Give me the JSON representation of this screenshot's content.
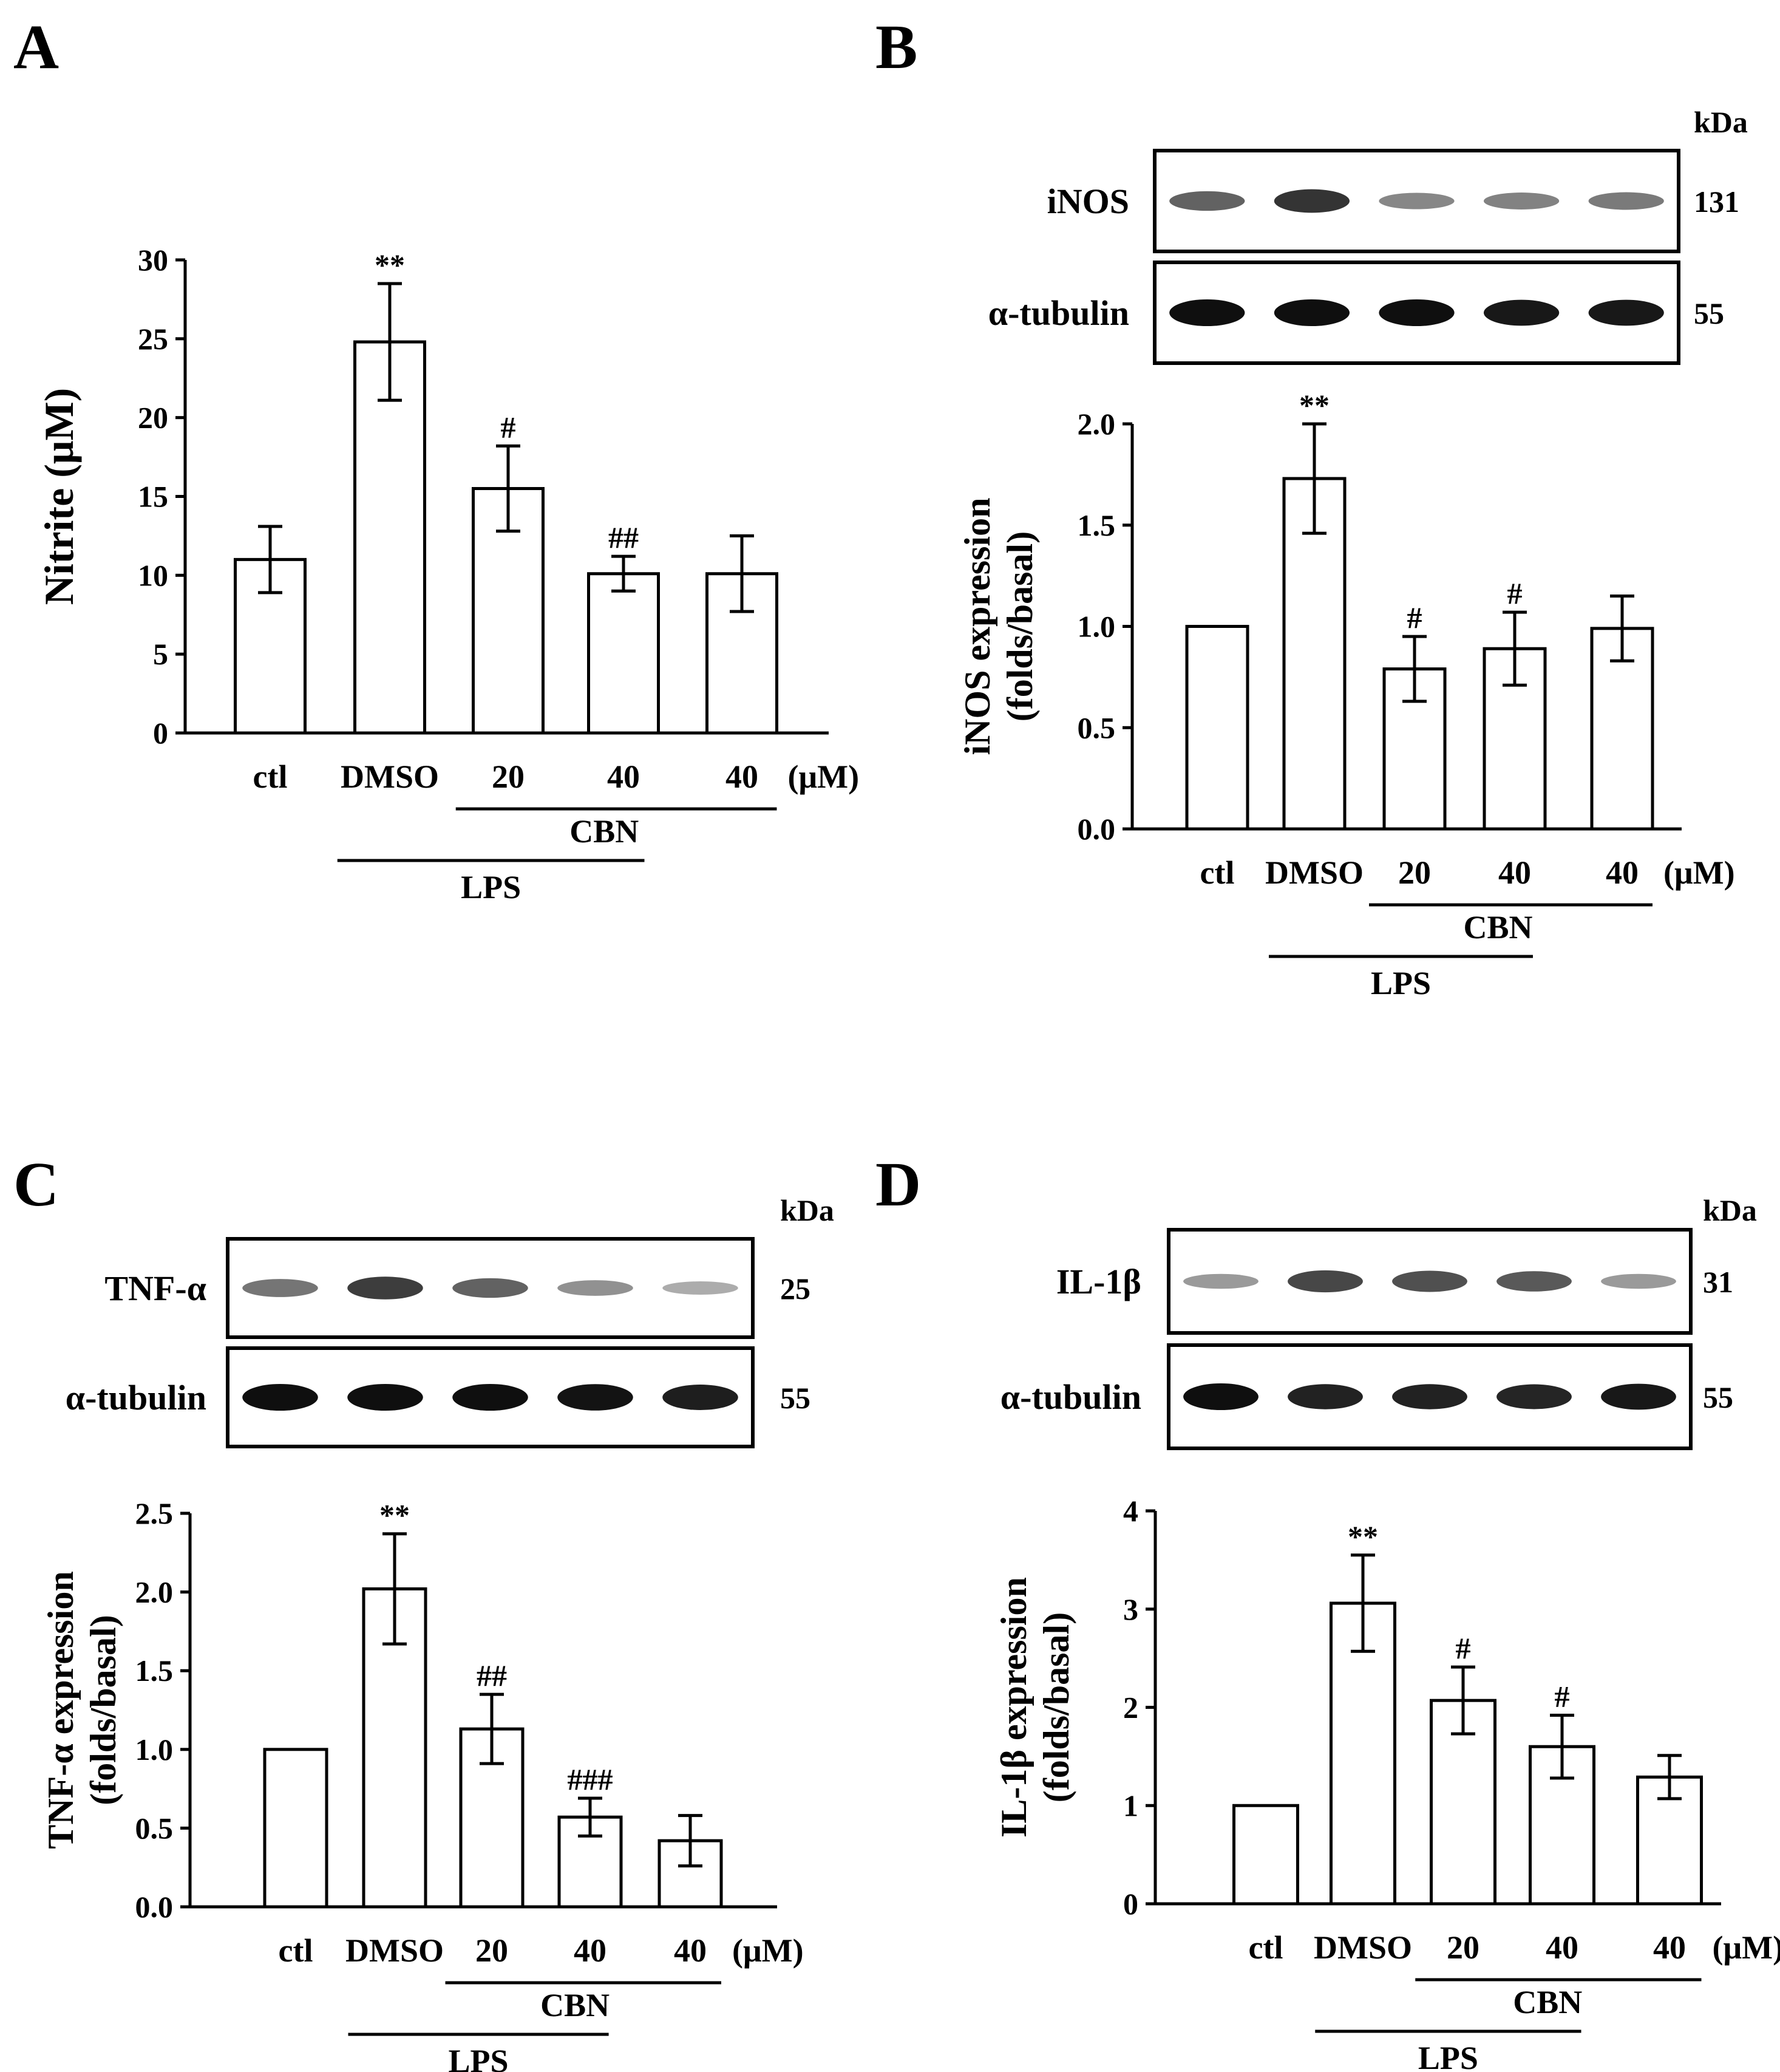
{
  "figure": {
    "treatment_labels": {
      "unit": "(μM)",
      "cbn": "CBN",
      "lps": "LPS"
    },
    "kda_header": "kDa"
  },
  "chart_data": [
    {
      "panel": "A",
      "type": "bar",
      "ylabel": "Nitrite (μM)",
      "categories": [
        "ctl",
        "DMSO",
        "20",
        "40",
        "40"
      ],
      "values": [
        11.0,
        24.8,
        15.5,
        10.1,
        10.1
      ],
      "errors": [
        2.1,
        3.7,
        2.7,
        1.1,
        2.4
      ],
      "significance": [
        "",
        "**",
        "#",
        "##",
        ""
      ],
      "ylim": [
        0,
        30
      ],
      "yticks": [
        "0",
        "5",
        "10",
        "15",
        "20",
        "25",
        "30"
      ]
    },
    {
      "panel": "B",
      "type": "bar",
      "ylabel": [
        "iNOS expression",
        "(folds/basal)"
      ],
      "categories": [
        "ctl",
        "DMSO",
        "20",
        "40",
        "40"
      ],
      "values": [
        1.0,
        1.73,
        0.79,
        0.89,
        0.99
      ],
      "errors": [
        0,
        0.27,
        0.16,
        0.18,
        0.16
      ],
      "significance": [
        "",
        "**",
        "#",
        "#",
        ""
      ],
      "ylim": [
        0,
        2.0
      ],
      "yticks": [
        "0.0",
        "0.5",
        "1.0",
        "1.5",
        "2.0"
      ],
      "blots": [
        {
          "label": "iNOS",
          "kda": "131",
          "intensity": [
            0.55,
            0.8,
            0.35,
            0.38,
            0.42
          ]
        },
        {
          "label": "α-tubulin",
          "kda": "55",
          "intensity": [
            1.0,
            1.0,
            1.0,
            0.95,
            0.95
          ]
        }
      ]
    },
    {
      "panel": "C",
      "type": "bar",
      "ylabel": [
        "TNF-α expression",
        "(folds/basal)"
      ],
      "categories": [
        "ctl",
        "DMSO",
        "20",
        "40",
        "40"
      ],
      "values": [
        1.0,
        2.02,
        1.13,
        0.57,
        0.42
      ],
      "errors": [
        0,
        0.35,
        0.22,
        0.12,
        0.16
      ],
      "significance": [
        "",
        "**",
        "##",
        "###",
        ""
      ],
      "ylim": [
        0,
        2.5
      ],
      "yticks": [
        "0.0",
        "0.5",
        "1.0",
        "1.5",
        "2.0",
        "2.5"
      ],
      "blots": [
        {
          "label": "TNF-α",
          "kda": "25",
          "intensity": [
            0.45,
            0.75,
            0.55,
            0.3,
            0.15
          ]
        },
        {
          "label": "α-tubulin",
          "kda": "55",
          "intensity": [
            1.0,
            1.0,
            1.0,
            0.98,
            0.92
          ]
        }
      ]
    },
    {
      "panel": "D",
      "type": "bar",
      "ylabel": [
        "IL-1β expression",
        "(folds/basal)"
      ],
      "categories": [
        "ctl",
        "DMSO",
        "20",
        "40",
        "40"
      ],
      "values": [
        1.0,
        3.06,
        2.07,
        1.6,
        1.29
      ],
      "errors": [
        0,
        0.49,
        0.34,
        0.32,
        0.22
      ],
      "significance": [
        "",
        "**",
        "#",
        "#",
        ""
      ],
      "ylim": [
        0,
        4
      ],
      "yticks": [
        "0",
        "1",
        "2",
        "3",
        "4"
      ],
      "blots": [
        {
          "label": "IL-1β",
          "kda": "31",
          "intensity": [
            0.25,
            0.7,
            0.65,
            0.6,
            0.25
          ]
        },
        {
          "label": "α-tubulin",
          "kda": "55",
          "intensity": [
            1.0,
            0.9,
            0.9,
            0.88,
            0.95
          ]
        }
      ]
    }
  ]
}
